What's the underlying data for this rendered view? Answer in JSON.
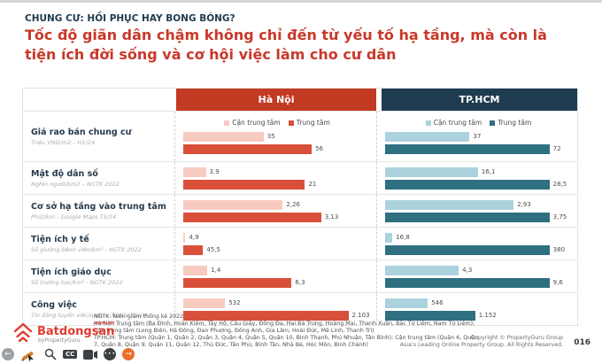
{
  "colors": {
    "navy": "#1F3B50",
    "red_header": "#C23A22",
    "red_title": "#C9382A",
    "bar_red": "#D9503A",
    "bar_red_light": "#F8CBC1",
    "bar_teal": "#2E6F80",
    "bar_teal_light": "#ABD2DD"
  },
  "slide": {
    "kicker": "CHUNG CƯ: HỒI PHỤC HAY BONG BÓNG?",
    "title": "Tốc độ giãn dân chậm không chỉ đến từ yếu tố hạ tầng, mà còn là tiện ích đời sống và cơ hội việc làm cho cư dân",
    "page_number": "016"
  },
  "chart_data": {
    "type": "bar",
    "orientation": "horizontal",
    "panels": [
      {
        "name": "Hà Nội",
        "accent": "#C23A22",
        "light_color": "#F8CBC1",
        "dark_color": "#D9503A"
      },
      {
        "name": "TP.HCM",
        "accent": "#1F3B50",
        "light_color": "#ABD2DD",
        "dark_color": "#2E6F80"
      }
    ],
    "legend": [
      "Cận trung tâm",
      "Trung tâm"
    ],
    "rows": [
      {
        "label": "Giá rao bán chung cư",
        "source": "Triệu VND/m2 – H1/24",
        "hanoi": {
          "can_trung_tam": 35,
          "trung_tam": 56
        },
        "tphcm": {
          "can_trung_tam": 37,
          "trung_tam": 72
        },
        "display": {
          "hanoi": [
            "35",
            "56"
          ],
          "tphcm": [
            "37",
            "72"
          ]
        }
      },
      {
        "label": "Mật độ dân số",
        "source": "Nghìn người/km2 – NGTK 2022",
        "hanoi": {
          "can_trung_tam": 3.9,
          "trung_tam": 21
        },
        "tphcm": {
          "can_trung_tam": 16.1,
          "trung_tam": 28.5
        },
        "display": {
          "hanoi": [
            "3,9",
            "21"
          ],
          "tphcm": [
            "16,1",
            "28,5"
          ]
        }
      },
      {
        "label": "Cơ sở hạ tầng vào trung tâm",
        "source": "Phút/km - Google Maps T5/24",
        "hanoi": {
          "can_trung_tam": 2.26,
          "trung_tam": 3.13
        },
        "tphcm": {
          "can_trung_tam": 2.93,
          "trung_tam": 3.75
        },
        "display": {
          "hanoi": [
            "2,26",
            "3,13"
          ],
          "tphcm": [
            "2,93",
            "3,75"
          ]
        }
      },
      {
        "label": "Tiện ích y tế",
        "source": "Số giường bệnh viện/km² - NGTK 2022",
        "hanoi": {
          "can_trung_tam": 4.9,
          "trung_tam": 45.5
        },
        "tphcm": {
          "can_trung_tam": 16.8,
          "trung_tam": 380
        },
        "display": {
          "hanoi": [
            "4,9",
            "45,5"
          ],
          "tphcm": [
            "16,8",
            "380"
          ]
        }
      },
      {
        "label": "Tiện ích giáo dục",
        "source": "Số trường học/km² - NGTK 2022",
        "hanoi": {
          "can_trung_tam": 1.4,
          "trung_tam": 6.3
        },
        "tphcm": {
          "can_trung_tam": 4.3,
          "trung_tam": 9.6
        },
        "display": {
          "hanoi": [
            "1,4",
            "6,3"
          ],
          "tphcm": [
            "4,3",
            "9,6"
          ]
        }
      },
      {
        "label": "Công việc",
        "source": "Tin đăng tuyển việc/quận – TopCV T5/24",
        "hanoi": {
          "can_trung_tam": 532,
          "trung_tam": 2103
        },
        "tphcm": {
          "can_trung_tam": 546,
          "trung_tam": 1152
        },
        "display": {
          "hanoi": [
            "532",
            "2.103"
          ],
          "tphcm": [
            "546",
            "1.152"
          ]
        }
      }
    ]
  },
  "footnote": {
    "line1": "NGTK: Niên giám thống kê 2022",
    "line2": "Hà Nội: Trung tâm (Ba Đình, Hoàn Kiếm, Tây Hồ, Cầu Giấy, Đống Đa, Hai Bà Trưng, Hoàng Mai, Thanh Xuân, Bắc Từ Liêm, Nam Từ Liêm); Cận trung tâm (Long Biên, Hà Đông, Đan Phượng, Đông Anh, Gia Lâm, Hoài Đức, Mê Linh, Thanh Trì)",
    "line3": "TP.HCM: Trung tâm (Quận 1, Quận 2, Quận 3, Quận 4, Quận 5, Quận 10, Bình Thạnh, Phú Nhuận, Tân Bình); Cận trung tâm (Quận 6, Quận 7, Quận 8, Quận 9, Quận 11, Quận 12, Thủ Đức, Tân Phú, Bình Tân, Nhà Bè, Hóc Môn, Bình Chánh)"
  },
  "footer": {
    "logo_domain": ".com.vn",
    "logo_name": "Batdongsan",
    "logo_byline": "byPropertyGuru",
    "copyright_line1": "Copyright © PropertyGuru Group",
    "copyright_line2": "Asia's Leading Online Property Group. All Rights Reserved.",
    "cc_label": "CC",
    "back_glyph": "←",
    "fwd_glyph": "→",
    "more_glyph": "•••"
  }
}
